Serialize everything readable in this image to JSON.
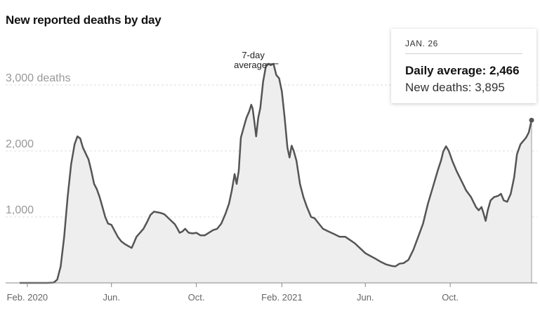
{
  "chart_data": {
    "type": "area",
    "title": "New reported deaths by day",
    "y_unit_label": "deaths",
    "yticks": [
      {
        "value": 1000,
        "label": "1,000"
      },
      {
        "value": 2000,
        "label": "2,000"
      },
      {
        "value": 3000,
        "label": "3,000 deaths"
      }
    ],
    "ylim": [
      0,
      3600
    ],
    "xlim": [
      "2020-01-21",
      "2022-01-26"
    ],
    "xticks": [
      {
        "date": "2020-02-01",
        "label": "Feb. 2020"
      },
      {
        "date": "2020-06-01",
        "label": "Jun."
      },
      {
        "date": "2020-10-01",
        "label": "Oct."
      },
      {
        "date": "2021-02-01",
        "label": "Feb. 2021"
      },
      {
        "date": "2021-06-01",
        "label": "Jun."
      },
      {
        "date": "2021-10-01",
        "label": "Oct."
      }
    ],
    "grid": true,
    "annotation": {
      "label_line1": "7-day",
      "label_line2": "average",
      "date": "2021-01-13",
      "value": 3320
    },
    "series": [
      {
        "name": "7-day average",
        "points": [
          [
            "2020-01-21",
            0
          ],
          [
            "2020-03-01",
            0
          ],
          [
            "2020-03-10",
            5
          ],
          [
            "2020-03-15",
            50
          ],
          [
            "2020-03-20",
            250
          ],
          [
            "2020-03-25",
            700
          ],
          [
            "2020-03-30",
            1300
          ],
          [
            "2020-04-04",
            1800
          ],
          [
            "2020-04-09",
            2100
          ],
          [
            "2020-04-13",
            2220
          ],
          [
            "2020-04-17",
            2190
          ],
          [
            "2020-04-21",
            2050
          ],
          [
            "2020-04-25",
            1960
          ],
          [
            "2020-04-29",
            1870
          ],
          [
            "2020-05-03",
            1700
          ],
          [
            "2020-05-07",
            1500
          ],
          [
            "2020-05-11",
            1420
          ],
          [
            "2020-05-15",
            1300
          ],
          [
            "2020-05-19",
            1150
          ],
          [
            "2020-05-23",
            1000
          ],
          [
            "2020-05-27",
            900
          ],
          [
            "2020-06-01",
            880
          ],
          [
            "2020-06-05",
            800
          ],
          [
            "2020-06-10",
            700
          ],
          [
            "2020-06-15",
            630
          ],
          [
            "2020-06-20",
            590
          ],
          [
            "2020-06-25",
            560
          ],
          [
            "2020-06-30",
            530
          ],
          [
            "2020-07-03",
            600
          ],
          [
            "2020-07-07",
            700
          ],
          [
            "2020-07-12",
            760
          ],
          [
            "2020-07-17",
            820
          ],
          [
            "2020-07-22",
            920
          ],
          [
            "2020-07-27",
            1030
          ],
          [
            "2020-08-01",
            1080
          ],
          [
            "2020-08-06",
            1070
          ],
          [
            "2020-08-11",
            1060
          ],
          [
            "2020-08-16",
            1040
          ],
          [
            "2020-08-21",
            990
          ],
          [
            "2020-08-26",
            940
          ],
          [
            "2020-08-31",
            890
          ],
          [
            "2020-09-04",
            820
          ],
          [
            "2020-09-07",
            760
          ],
          [
            "2020-09-11",
            780
          ],
          [
            "2020-09-15",
            820
          ],
          [
            "2020-09-20",
            760
          ],
          [
            "2020-09-26",
            750
          ],
          [
            "2020-10-01",
            760
          ],
          [
            "2020-10-07",
            720
          ],
          [
            "2020-10-13",
            720
          ],
          [
            "2020-10-19",
            760
          ],
          [
            "2020-10-25",
            800
          ],
          [
            "2020-10-31",
            820
          ],
          [
            "2020-11-06",
            900
          ],
          [
            "2020-11-12",
            1050
          ],
          [
            "2020-11-17",
            1200
          ],
          [
            "2020-11-21",
            1400
          ],
          [
            "2020-11-25",
            1650
          ],
          [
            "2020-11-28",
            1500
          ],
          [
            "2020-12-01",
            1700
          ],
          [
            "2020-12-04",
            2200
          ],
          [
            "2020-12-08",
            2350
          ],
          [
            "2020-12-12",
            2500
          ],
          [
            "2020-12-16",
            2600
          ],
          [
            "2020-12-19",
            2700
          ],
          [
            "2020-12-21",
            2640
          ],
          [
            "2020-12-23",
            2480
          ],
          [
            "2020-12-26",
            2220
          ],
          [
            "2020-12-29",
            2500
          ],
          [
            "2021-01-01",
            2650
          ],
          [
            "2021-01-05",
            3050
          ],
          [
            "2021-01-09",
            3280
          ],
          [
            "2021-01-13",
            3320
          ],
          [
            "2021-01-16",
            3300
          ],
          [
            "2021-01-20",
            3320
          ],
          [
            "2021-01-24",
            3150
          ],
          [
            "2021-01-28",
            3100
          ],
          [
            "2021-02-01",
            2900
          ],
          [
            "2021-02-05",
            2500
          ],
          [
            "2021-02-09",
            2050
          ],
          [
            "2021-02-12",
            1900
          ],
          [
            "2021-02-15",
            2080
          ],
          [
            "2021-02-18",
            2000
          ],
          [
            "2021-02-22",
            1850
          ],
          [
            "2021-02-27",
            1500
          ],
          [
            "2021-03-04",
            1300
          ],
          [
            "2021-03-09",
            1150
          ],
          [
            "2021-03-15",
            1000
          ],
          [
            "2021-03-20",
            980
          ],
          [
            "2021-03-26",
            900
          ],
          [
            "2021-04-01",
            820
          ],
          [
            "2021-04-09",
            780
          ],
          [
            "2021-04-17",
            740
          ],
          [
            "2021-04-25",
            700
          ],
          [
            "2021-05-03",
            700
          ],
          [
            "2021-05-10",
            650
          ],
          [
            "2021-05-17",
            600
          ],
          [
            "2021-05-24",
            530
          ],
          [
            "2021-06-01",
            450
          ],
          [
            "2021-06-08",
            410
          ],
          [
            "2021-06-15",
            370
          ],
          [
            "2021-06-23",
            320
          ],
          [
            "2021-07-01",
            280
          ],
          [
            "2021-07-08",
            260
          ],
          [
            "2021-07-14",
            250
          ],
          [
            "2021-07-20",
            290
          ],
          [
            "2021-07-26",
            300
          ],
          [
            "2021-08-02",
            350
          ],
          [
            "2021-08-09",
            500
          ],
          [
            "2021-08-16",
            700
          ],
          [
            "2021-08-23",
            900
          ],
          [
            "2021-08-30",
            1200
          ],
          [
            "2021-09-06",
            1450
          ],
          [
            "2021-09-13",
            1700
          ],
          [
            "2021-09-18",
            1860
          ],
          [
            "2021-09-21",
            1990
          ],
          [
            "2021-09-25",
            2070
          ],
          [
            "2021-09-29",
            2000
          ],
          [
            "2021-10-04",
            1850
          ],
          [
            "2021-10-10",
            1700
          ],
          [
            "2021-10-17",
            1550
          ],
          [
            "2021-10-24",
            1400
          ],
          [
            "2021-10-31",
            1300
          ],
          [
            "2021-11-07",
            1150
          ],
          [
            "2021-11-11",
            1100
          ],
          [
            "2021-11-15",
            1150
          ],
          [
            "2021-11-18",
            1050
          ],
          [
            "2021-11-21",
            940
          ],
          [
            "2021-11-24",
            1100
          ],
          [
            "2021-11-28",
            1250
          ],
          [
            "2021-12-03",
            1300
          ],
          [
            "2021-12-09",
            1320
          ],
          [
            "2021-12-13",
            1350
          ],
          [
            "2021-12-17",
            1250
          ],
          [
            "2021-12-22",
            1230
          ],
          [
            "2021-12-27",
            1350
          ],
          [
            "2022-01-01",
            1600
          ],
          [
            "2022-01-05",
            1950
          ],
          [
            "2022-01-10",
            2100
          ],
          [
            "2022-01-14",
            2150
          ],
          [
            "2022-01-18",
            2200
          ],
          [
            "2022-01-22",
            2280
          ],
          [
            "2022-01-26",
            2466
          ]
        ]
      }
    ],
    "highlight": {
      "date": "2022-01-26",
      "value": 2466
    }
  },
  "tooltip": {
    "date": "JAN. 26",
    "daily_average_label": "Daily average:",
    "daily_average_value": "2,466",
    "new_deaths_label": "New deaths:",
    "new_deaths_value": "3,895"
  },
  "colors": {
    "line": "#555555",
    "area": "#eeeeee",
    "grid": "#dddddd",
    "axis_label": "#999999",
    "x_label": "#666666"
  }
}
